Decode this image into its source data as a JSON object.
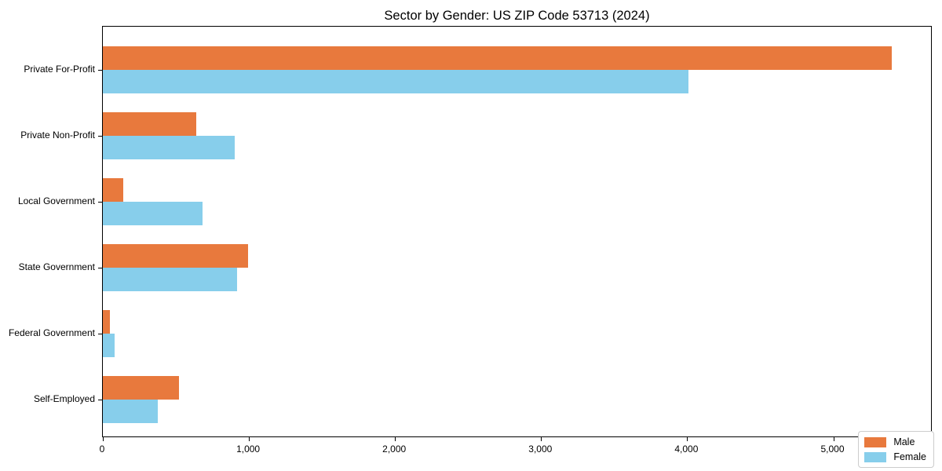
{
  "chart_data": {
    "type": "bar",
    "orientation": "horizontal",
    "title": "Sector by Gender: US ZIP Code 53713 (2024)",
    "categories": [
      "Private For-Profit",
      "Private Non-Profit",
      "Local Government",
      "State Government",
      "Federal Government",
      "Self-Employed"
    ],
    "series": [
      {
        "name": "Male",
        "color": "#e8793d",
        "values": [
          5400,
          640,
          140,
          995,
          50,
          520
        ]
      },
      {
        "name": "Female",
        "color": "#87ceeb",
        "values": [
          4010,
          900,
          680,
          920,
          80,
          375
        ]
      }
    ],
    "xlabel": "",
    "ylabel": "",
    "xlim": [
      0,
      5680
    ],
    "xticks": [
      0,
      1000,
      2000,
      3000,
      4000,
      5000
    ],
    "xtick_labels": [
      "0",
      "1,000",
      "2,000",
      "3,000",
      "4,000",
      "5,000"
    ],
    "grid": false,
    "legend": {
      "position": "lower right",
      "entries": [
        "Male",
        "Female"
      ]
    },
    "colors": {
      "axis": "#000000",
      "legend_border": "#cccccc",
      "background": "#ffffff"
    }
  }
}
